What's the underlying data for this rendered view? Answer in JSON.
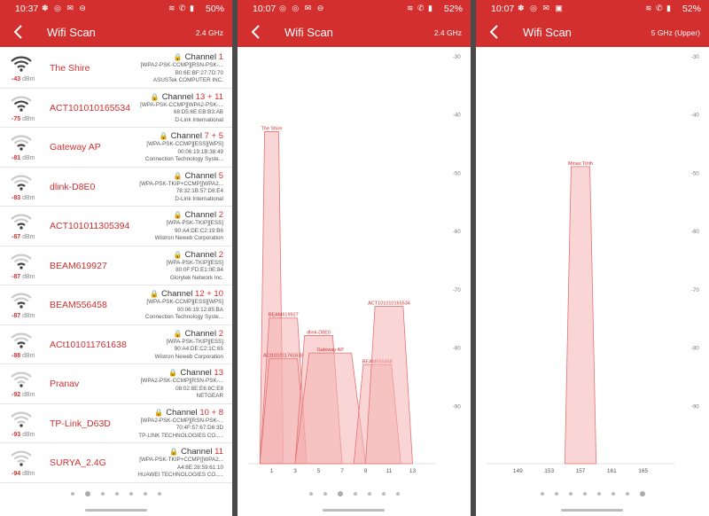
{
  "panels": [
    {
      "status": {
        "time": "10:37",
        "battery": "50%"
      },
      "appbar": {
        "title": "Wifi Scan",
        "band": "2.4 GHz"
      },
      "channel_word": "Channel",
      "networks": [
        {
          "ssid": "The Shire",
          "dbm": "-43",
          "channel": "1",
          "security": "[WPA2-PSK-CCMP][RSN-PSK-...",
          "mac": "B0:6E:BF:27:7D:70",
          "vendor": "ASUSTek COMPUTER INC.",
          "signal": 4
        },
        {
          "ssid": "ACT101010165534",
          "dbm": "-75",
          "channel": "13 + 11",
          "security": "[WPA-PSK-CCMP][WPA2-PSK-...",
          "mac": "68:D5:6E:EB:B3:AB",
          "vendor": "D-Link International",
          "signal": 3
        },
        {
          "ssid": "Gateway AP",
          "dbm": "-81",
          "channel": "7 + 5",
          "security": "[WPA-PSK-CCMP][ESS][WPS]",
          "mac": "00:06:19:1B:38:49",
          "vendor": "Connection Technology Syste...",
          "signal": 2
        },
        {
          "ssid": "dlink-D8E0",
          "dbm": "-83",
          "channel": "5",
          "security": "[WPA-PSK-TKIP+CCMP][WPA2...",
          "mac": "78:32:1B:57:D8:E4",
          "vendor": "D-Link International",
          "signal": 2
        },
        {
          "ssid": "ACT101011305394",
          "dbm": "-87",
          "channel": "2",
          "security": "[WPA-PSK-TKIP][ESS]",
          "mac": "90:A4:DE:C2:19:B6",
          "vendor": "Wistron Neweb Corporation",
          "signal": 2
        },
        {
          "ssid": "BEAM619927",
          "dbm": "-87",
          "channel": "2",
          "security": "[WPA-PSK-TKIP][ESS]",
          "mac": "80:0F:FD:E1:0E:84",
          "vendor": "Glorytek Network Inc.",
          "signal": 2
        },
        {
          "ssid": "BEAM556458",
          "dbm": "-87",
          "channel": "12 + 10",
          "security": "[WPA-PSK-CCMP][ESS][WPS]",
          "mac": "00:06:19:12:85:BA",
          "vendor": "Connection Technology Syste...",
          "signal": 2
        },
        {
          "ssid": "ACt101011761638",
          "dbm": "-88",
          "channel": "2",
          "security": "[WPA-PSK-TKIP][ESS]",
          "mac": "90:A4:DE:C2:1C:65",
          "vendor": "Wistron Neweb Corporation",
          "signal": 2
        },
        {
          "ssid": "Pranav",
          "dbm": "-92",
          "channel": "13",
          "security": "[WPA2-PSK-CCMP][RSN-PSK-...",
          "mac": "08:02:8E:E6:8C:E8",
          "vendor": "NETGEAR",
          "signal": 1
        },
        {
          "ssid": "TP-Link_D63D",
          "dbm": "-93",
          "channel": "10 + 8",
          "security": "[WPA2-PSK-CCMP][RSN-PSK-...",
          "mac": "70:4F:57:67:D6:3D",
          "vendor": "TP-LINK TECHNOLOGIES CO.,...",
          "signal": 1
        },
        {
          "ssid": "SURYA_2.4G",
          "dbm": "-94",
          "channel": "11",
          "security": "[WPA-PSK-TKIP+CCMP][WPA2...",
          "mac": "A4:8E:28:59:61:10",
          "vendor": "HUAWEI TECHNOLOGIES CO.,...",
          "signal": 1
        }
      ]
    },
    {
      "status": {
        "time": "10:07",
        "battery": "52%"
      },
      "appbar": {
        "title": "Wifi Scan",
        "band": "2.4 GHz"
      }
    },
    {
      "status": {
        "time": "10:07",
        "battery": "52%"
      },
      "appbar": {
        "title": "Wifi Scan",
        "band": "5 GHz  (Upper)"
      }
    }
  ],
  "unit_dbm": "dBm",
  "colors": {
    "accent": "#d32f2f",
    "fill": "#f4b3b3",
    "edge": "#e57373"
  },
  "chart_data": [
    {
      "type": "area",
      "band": "2.4 GHz",
      "xlim": [
        -1,
        15
      ],
      "ylim": [
        -100,
        -30
      ],
      "x_ticks": [
        1,
        3,
        5,
        7,
        9,
        11,
        13
      ],
      "y_ticks": [
        -30,
        -40,
        -50,
        -60,
        -70,
        -80,
        -90
      ],
      "series": [
        {
          "name": "The Shire",
          "start": 0,
          "end": 2,
          "level": -43
        },
        {
          "name": "BEAM619927",
          "start": 0,
          "end": 4,
          "level": -75
        },
        {
          "name": "ACt101011761638",
          "start": 0,
          "end": 4,
          "level": -82
        },
        {
          "name": "dlink-D8E0",
          "start": 3,
          "end": 7,
          "level": -78
        },
        {
          "name": "Gateway AP",
          "start": 3,
          "end": 9,
          "level": -81
        },
        {
          "name": "BEAM556458",
          "start": 8,
          "end": 12,
          "level": -83
        },
        {
          "name": "ACT101010165534",
          "start": 9,
          "end": 13,
          "level": -73
        }
      ]
    },
    {
      "type": "area",
      "band": "5 GHz (Upper)",
      "xlim": [
        145,
        169
      ],
      "ylim": [
        -100,
        -30
      ],
      "x_ticks": [
        149,
        153,
        157,
        161,
        165
      ],
      "y_ticks": [
        -30,
        -40,
        -50,
        -60,
        -70,
        -80,
        -90
      ],
      "series": [
        {
          "name": "Minas Tirith",
          "start": 155,
          "end": 159,
          "level": -49
        }
      ]
    }
  ]
}
